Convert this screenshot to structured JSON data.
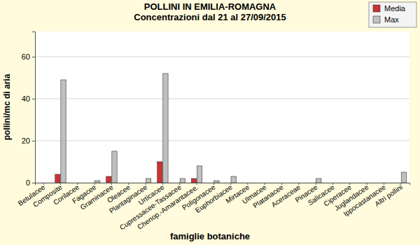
{
  "chart_data": {
    "type": "bar",
    "title": "POLLINI IN EMILIA-ROMAGNA",
    "subtitle": "Concentrazioni dal 21 al 27/09/2015",
    "x_label": "famiglie botaniche",
    "y_label": "pollini/mc di aria",
    "categories": [
      "Betulacee",
      "Composite",
      "Corilacee",
      "Fagacee",
      "Graminacee",
      "Oleacee",
      "Plantaginacee",
      "Urticacee",
      "Cupressacee-Tassacee",
      "Chenop.-Amarantacee.",
      "Poligonacee",
      "Euphorbiacee",
      "Mirtacee",
      "Ulmacee",
      "Platanacee",
      "Aceraceae",
      "Pinacee",
      "Salicacee",
      "Ciperacee",
      "Juglandacee",
      "Ippocastanacee",
      "Altri pollini"
    ],
    "series": [
      {
        "name": "Media",
        "color": "#cc3333",
        "values": [
          0,
          4,
          0,
          0,
          3,
          0,
          0,
          10,
          0,
          2,
          0,
          0,
          0,
          0,
          0,
          0,
          0,
          0,
          0,
          0,
          0,
          0
        ]
      },
      {
        "name": "Max",
        "color": "#c0c0c0",
        "values": [
          0,
          49,
          0,
          1,
          15,
          0,
          2,
          52,
          2,
          8,
          1,
          3,
          0,
          0,
          0,
          0,
          2,
          0,
          0,
          0,
          0,
          5
        ]
      }
    ],
    "ylim": [
      0,
      72
    ],
    "yticks": [
      0,
      20,
      40,
      60
    ],
    "grid": true,
    "legend": "top-right"
  }
}
